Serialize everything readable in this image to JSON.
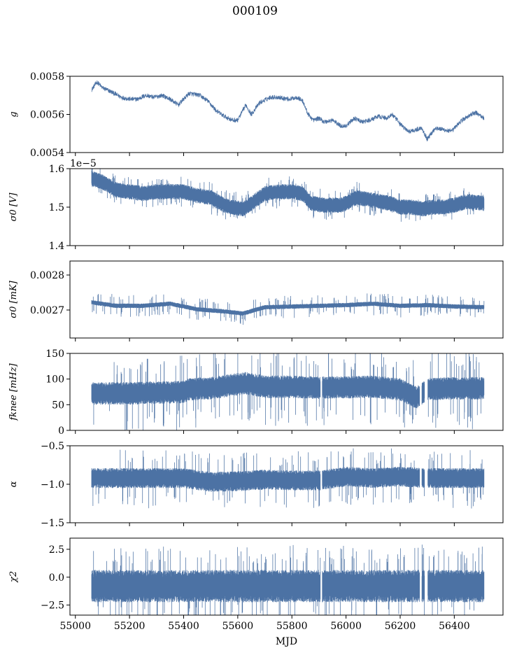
{
  "figure": {
    "title": "000109",
    "xlabel": "MJD",
    "x_ticks": [
      "55000",
      "55200",
      "55400",
      "55600",
      "55800",
      "56000",
      "56200",
      "56400"
    ],
    "series_color": "#4c72a4"
  },
  "chart_data": [
    {
      "type": "line",
      "ylabel": "g",
      "xlim": [
        54980,
        56580
      ],
      "ylim": [
        0.0054,
        0.0058
      ],
      "y_ticks": [
        "0.0054",
        "0.0056",
        "0.0058"
      ],
      "y_tick_values": [
        0.0054,
        0.0056,
        0.0058
      ],
      "gaps": [],
      "noise": 1.2e-05,
      "trend": [
        [
          55060,
          0.00573
        ],
        [
          55080,
          0.00577
        ],
        [
          55100,
          0.00574
        ],
        [
          55130,
          0.00572
        ],
        [
          55170,
          0.00569
        ],
        [
          55200,
          0.00568
        ],
        [
          55230,
          0.00568
        ],
        [
          55260,
          0.0057
        ],
        [
          55290,
          0.00569
        ],
        [
          55320,
          0.0057
        ],
        [
          55350,
          0.00568
        ],
        [
          55380,
          0.00565
        ],
        [
          55420,
          0.00571
        ],
        [
          55460,
          0.0057
        ],
        [
          55490,
          0.00567
        ],
        [
          55520,
          0.00562
        ],
        [
          55550,
          0.00559
        ],
        [
          55580,
          0.00557
        ],
        [
          55600,
          0.00557
        ],
        [
          55630,
          0.00565
        ],
        [
          55650,
          0.0056
        ],
        [
          55680,
          0.00566
        ],
        [
          55720,
          0.00569
        ],
        [
          55750,
          0.00569
        ],
        [
          55790,
          0.00568
        ],
        [
          55820,
          0.00569
        ],
        [
          55840,
          0.00567
        ],
        [
          55860,
          0.0056
        ],
        [
          55880,
          0.00557
        ],
        [
          55900,
          0.00558
        ],
        [
          55920,
          0.00556
        ],
        [
          55950,
          0.00557
        ],
        [
          55980,
          0.00554
        ],
        [
          56000,
          0.00554
        ],
        [
          56030,
          0.00558
        ],
        [
          56060,
          0.00556
        ],
        [
          56090,
          0.00557
        ],
        [
          56120,
          0.00559
        ],
        [
          56150,
          0.00558
        ],
        [
          56170,
          0.0056
        ],
        [
          56200,
          0.00555
        ],
        [
          56230,
          0.00551
        ],
        [
          56260,
          0.00552
        ],
        [
          56280,
          0.00553
        ],
        [
          56300,
          0.00547
        ],
        [
          56330,
          0.00553
        ],
        [
          56360,
          0.00552
        ],
        [
          56390,
          0.00551
        ],
        [
          56420,
          0.00556
        ],
        [
          56450,
          0.00559
        ],
        [
          56480,
          0.00561
        ],
        [
          56510,
          0.00558
        ]
      ]
    },
    {
      "type": "area",
      "ylabel": "σ0 [V]",
      "offset_text": "1e−5",
      "xlim": [
        54980,
        56580
      ],
      "ylim": [
        1.4,
        1.6
      ],
      "y_ticks": [
        "1.4",
        "1.5",
        "1.6"
      ],
      "y_tick_values": [
        1.4,
        1.5,
        1.6
      ],
      "gaps": [],
      "spread": 0.02,
      "spikes": 0.008,
      "trend": [
        [
          55060,
          1.575
        ],
        [
          55100,
          1.565
        ],
        [
          55150,
          1.545
        ],
        [
          55200,
          1.54
        ],
        [
          55250,
          1.535
        ],
        [
          55300,
          1.54
        ],
        [
          55350,
          1.54
        ],
        [
          55400,
          1.54
        ],
        [
          55450,
          1.53
        ],
        [
          55500,
          1.525
        ],
        [
          55550,
          1.505
        ],
        [
          55580,
          1.5
        ],
        [
          55620,
          1.495
        ],
        [
          55650,
          1.51
        ],
        [
          55700,
          1.535
        ],
        [
          55750,
          1.54
        ],
        [
          55800,
          1.54
        ],
        [
          55840,
          1.535
        ],
        [
          55870,
          1.51
        ],
        [
          55920,
          1.505
        ],
        [
          55980,
          1.505
        ],
        [
          56000,
          1.51
        ],
        [
          56040,
          1.525
        ],
        [
          56080,
          1.52
        ],
        [
          56120,
          1.515
        ],
        [
          56160,
          1.51
        ],
        [
          56200,
          1.5
        ],
        [
          56240,
          1.5
        ],
        [
          56280,
          1.495
        ],
        [
          56320,
          1.5
        ],
        [
          56360,
          1.5
        ],
        [
          56400,
          1.505
        ],
        [
          56450,
          1.515
        ],
        [
          56510,
          1.51
        ]
      ]
    },
    {
      "type": "area",
      "ylabel": "σ0 [mK]",
      "xlim": [
        54980,
        56580
      ],
      "ylim": [
        0.00262,
        0.00284
      ],
      "y_ticks": [
        "0.0027",
        "0.0028"
      ],
      "y_tick_values": [
        0.0027,
        0.0028
      ],
      "gaps": [],
      "spread": 6.5e-06,
      "spikes": 9e-06,
      "trend": [
        [
          55060,
          0.002722
        ],
        [
          55150,
          0.002712
        ],
        [
          55250,
          0.002712
        ],
        [
          55350,
          0.002718
        ],
        [
          55450,
          0.002702
        ],
        [
          55550,
          0.002696
        ],
        [
          55620,
          0.00269
        ],
        [
          55700,
          0.002708
        ],
        [
          55800,
          0.00271
        ],
        [
          55900,
          0.002712
        ],
        [
          56000,
          0.002714
        ],
        [
          56100,
          0.002718
        ],
        [
          56200,
          0.002712
        ],
        [
          56300,
          0.002714
        ],
        [
          56400,
          0.00271
        ],
        [
          56510,
          0.002708
        ]
      ]
    },
    {
      "type": "area",
      "ylabel": "fknee [mHz]",
      "xlim": [
        54980,
        56580
      ],
      "ylim": [
        0,
        150
      ],
      "y_ticks": [
        "0",
        "50",
        "100",
        "150"
      ],
      "y_tick_values": [
        0,
        50,
        100,
        150
      ],
      "gaps": [
        [
          55905,
          55912
        ],
        [
          56272,
          56280
        ],
        [
          56290,
          56302
        ]
      ],
      "spread": 22,
      "spikes": 20,
      "trend": [
        [
          55060,
          72
        ],
        [
          55200,
          72
        ],
        [
          55400,
          75
        ],
        [
          55420,
          80
        ],
        [
          55500,
          82
        ],
        [
          55600,
          90
        ],
        [
          55630,
          92
        ],
        [
          55700,
          85
        ],
        [
          55800,
          85
        ],
        [
          55900,
          83
        ],
        [
          56000,
          84
        ],
        [
          56100,
          85
        ],
        [
          56200,
          80
        ],
        [
          56260,
          64
        ],
        [
          56300,
          80
        ],
        [
          56400,
          82
        ],
        [
          56510,
          82
        ]
      ]
    },
    {
      "type": "area",
      "ylabel": "α",
      "xlim": [
        54980,
        56580
      ],
      "ylim": [
        -1.5,
        -0.5
      ],
      "y_ticks": [
        "−1.5",
        "−1.0",
        "−0.5"
      ],
      "y_tick_values": [
        -1.5,
        -1.0,
        -0.5
      ],
      "gaps": [
        [
          55905,
          55912
        ],
        [
          56272,
          56280
        ],
        [
          56290,
          56302
        ]
      ],
      "spread": 0.13,
      "spikes": 0.09,
      "trend": [
        [
          55060,
          -0.92
        ],
        [
          55200,
          -0.92
        ],
        [
          55400,
          -0.92
        ],
        [
          55500,
          -0.97
        ],
        [
          55600,
          -0.96
        ],
        [
          55700,
          -0.94
        ],
        [
          55800,
          -0.95
        ],
        [
          55900,
          -0.95
        ],
        [
          56000,
          -0.9
        ],
        [
          56100,
          -0.92
        ],
        [
          56200,
          -0.9
        ],
        [
          56300,
          -0.92
        ],
        [
          56400,
          -0.92
        ],
        [
          56510,
          -0.92
        ]
      ]
    },
    {
      "type": "area",
      "ylabel": "χ2",
      "xlim": [
        54980,
        56580
      ],
      "ylim": [
        -3.4,
        3.5
      ],
      "y_ticks": [
        "−2.5",
        "0.0",
        "2.5"
      ],
      "y_tick_values": [
        -2.5,
        0.0,
        2.5
      ],
      "gaps": [
        [
          55905,
          55912
        ],
        [
          56272,
          56280
        ],
        [
          56290,
          56302
        ]
      ],
      "spread": 1.45,
      "spikes": 0.8,
      "trend": [
        [
          55060,
          -0.8
        ],
        [
          55300,
          -0.8
        ],
        [
          55600,
          -0.8
        ],
        [
          55900,
          -0.8
        ],
        [
          56200,
          -0.8
        ],
        [
          56510,
          -0.8
        ]
      ]
    }
  ]
}
